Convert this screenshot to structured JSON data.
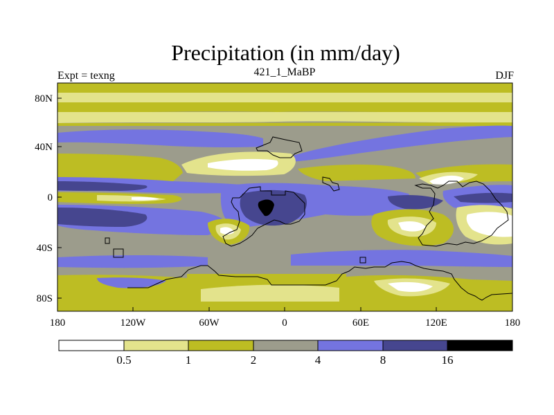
{
  "chart_data": {
    "type": "heatmap",
    "title": "Precipitation (in mm/day)",
    "left_string": "Expt = texng",
    "center_string": "421_1_MaBP",
    "right_string": "DJF",
    "x_range": [
      -180,
      180
    ],
    "y_range": [
      -90,
      90
    ],
    "x_ticks": [
      {
        "value": -180,
        "label": "180"
      },
      {
        "value": -120,
        "label": "120W"
      },
      {
        "value": -60,
        "label": "60W"
      },
      {
        "value": 0,
        "label": "0"
      },
      {
        "value": 60,
        "label": "60E"
      },
      {
        "value": 120,
        "label": "120E"
      },
      {
        "value": 180,
        "label": "180"
      }
    ],
    "y_ticks": [
      {
        "value": 80,
        "label": "80N"
      },
      {
        "value": 40,
        "label": "40N"
      },
      {
        "value": 0,
        "label": "0"
      },
      {
        "value": -40,
        "label": "40S"
      },
      {
        "value": -80,
        "label": "80S"
      }
    ],
    "colorbar": {
      "levels": [
        "0.5",
        "1",
        "2",
        "4",
        "8",
        "16"
      ],
      "colors": [
        "#ffffff",
        "#e3e38c",
        "#bdbd23",
        "#9c9c8c",
        "#7474e0",
        "#46468f",
        "#000000"
      ]
    }
  }
}
